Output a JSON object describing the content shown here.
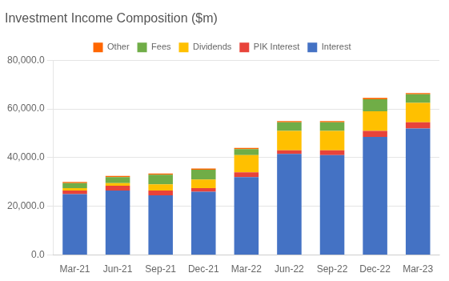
{
  "chart_data": {
    "type": "bar",
    "title": "Investment Income Composition ($m)",
    "categories": [
      "Mar-21",
      "Jun-21",
      "Sep-21",
      "Dec-21",
      "Mar-22",
      "Jun-22",
      "Sep-22",
      "Dec-22",
      "Mar-23"
    ],
    "series": [
      {
        "name": "Interest",
        "color": "#4472C4",
        "values": [
          25000,
          26500,
          24500,
          26000,
          32000,
          41500,
          41000,
          48500,
          52000
        ]
      },
      {
        "name": "PIK Interest",
        "color": "#E8433A",
        "values": [
          1500,
          2000,
          2000,
          1500,
          2000,
          1500,
          2000,
          2500,
          2500
        ]
      },
      {
        "name": "Dividends",
        "color": "#FFC000",
        "values": [
          1000,
          1000,
          2500,
          3500,
          7000,
          8000,
          8000,
          8000,
          8000
        ]
      },
      {
        "name": "Fees",
        "color": "#70AD47",
        "values": [
          2000,
          2500,
          4000,
          4000,
          2500,
          3500,
          3500,
          5000,
          3500
        ]
      },
      {
        "name": "Other",
        "color": "#FF6600",
        "values": [
          500,
          500,
          500,
          500,
          500,
          500,
          500,
          500,
          500
        ]
      }
    ],
    "ylim": [
      0,
      80000
    ],
    "yticks": [
      {
        "value": 0,
        "label": "0.0"
      },
      {
        "value": 20000,
        "label": "20,000.0"
      },
      {
        "value": 40000,
        "label": "40,000.0"
      },
      {
        "value": 60000,
        "label": "60,000.0"
      },
      {
        "value": 80000,
        "label": "80,000.0"
      }
    ],
    "stacked": true,
    "grid": true,
    "legend": "top"
  }
}
